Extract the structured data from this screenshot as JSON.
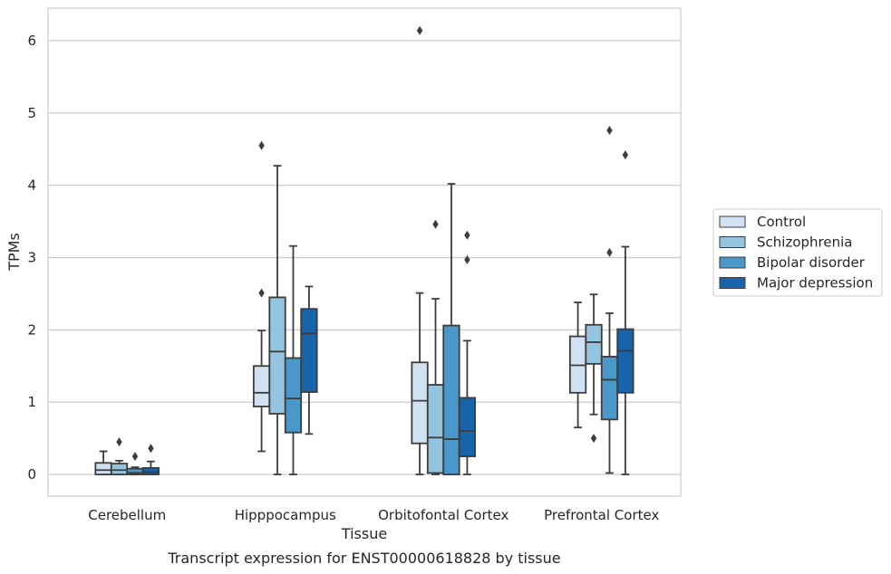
{
  "chart_data": {
    "type": "box",
    "title": "",
    "caption": "Transcript expression for ENST00000618828 by tissue",
    "xlabel": "Tissue",
    "ylabel": "TPMs",
    "ylim": [
      -0.3,
      6.45
    ],
    "yticks": [
      0,
      1,
      2,
      3,
      4,
      5,
      6
    ],
    "grid": "horizontal",
    "legend_position": "right",
    "categories": [
      "Cerebellum",
      "Hipppocampus",
      "Orbitofontal Cortex",
      "Prefrontal Cortex"
    ],
    "series": [
      {
        "name": "Control",
        "color": "#d0e1f2",
        "boxes": [
          {
            "whislo": 0.0,
            "q1": 0.0,
            "med": 0.06,
            "q3": 0.16,
            "whishi": 0.32,
            "fliers": []
          },
          {
            "whislo": 0.32,
            "q1": 0.94,
            "med": 1.13,
            "q3": 1.5,
            "whishi": 1.99,
            "fliers": [
              4.55,
              2.51
            ]
          },
          {
            "whislo": 0.0,
            "q1": 0.43,
            "med": 1.02,
            "q3": 1.55,
            "whishi": 2.51,
            "fliers": [
              6.14
            ]
          },
          {
            "whislo": 0.65,
            "q1": 1.13,
            "med": 1.51,
            "q3": 1.91,
            "whishi": 2.38,
            "fliers": []
          }
        ]
      },
      {
        "name": "Schizophrenia",
        "color": "#94c4df",
        "boxes": [
          {
            "whislo": 0.0,
            "q1": 0.0,
            "med": 0.06,
            "q3": 0.15,
            "whishi": 0.19,
            "fliers": [
              0.45
            ]
          },
          {
            "whislo": 0.0,
            "q1": 0.84,
            "med": 1.7,
            "q3": 2.45,
            "whishi": 4.27,
            "fliers": []
          },
          {
            "whislo": 0.0,
            "q1": 0.02,
            "med": 0.51,
            "q3": 1.24,
            "whishi": 2.43,
            "fliers": [
              3.46
            ]
          },
          {
            "whislo": 0.83,
            "q1": 1.53,
            "med": 1.83,
            "q3": 2.07,
            "whishi": 2.49,
            "fliers": [
              0.5
            ]
          }
        ]
      },
      {
        "name": "Bipolar disorder",
        "color": "#4a98c9",
        "boxes": [
          {
            "whislo": 0.0,
            "q1": 0.0,
            "med": 0.02,
            "q3": 0.08,
            "whishi": 0.1,
            "fliers": [
              0.25
            ]
          },
          {
            "whislo": 0.0,
            "q1": 0.58,
            "med": 1.05,
            "q3": 1.61,
            "whishi": 3.16,
            "fliers": []
          },
          {
            "whislo": 0.0,
            "q1": 0.0,
            "med": 0.49,
            "q3": 2.06,
            "whishi": 4.02,
            "fliers": []
          },
          {
            "whislo": 0.02,
            "q1": 0.76,
            "med": 1.31,
            "q3": 1.63,
            "whishi": 2.23,
            "fliers": [
              4.76,
              3.07
            ]
          }
        ]
      },
      {
        "name": "Major depression",
        "color": "#1764ab",
        "boxes": [
          {
            "whislo": 0.0,
            "q1": 0.0,
            "med": 0.03,
            "q3": 0.09,
            "whishi": 0.18,
            "fliers": [
              0.36
            ]
          },
          {
            "whislo": 0.56,
            "q1": 1.14,
            "med": 1.95,
            "q3": 2.29,
            "whishi": 2.6,
            "fliers": []
          },
          {
            "whislo": 0.0,
            "q1": 0.25,
            "med": 0.6,
            "q3": 1.06,
            "whishi": 1.85,
            "fliers": [
              3.31,
              2.97
            ]
          },
          {
            "whislo": 0.0,
            "q1": 1.13,
            "med": 1.71,
            "q3": 2.01,
            "whishi": 3.15,
            "fliers": [
              4.42
            ]
          }
        ]
      }
    ]
  }
}
